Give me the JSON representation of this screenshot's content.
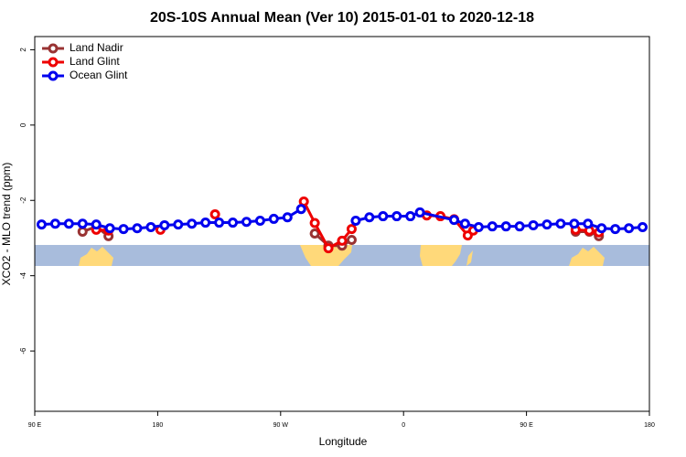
{
  "chart_data": {
    "type": "line",
    "title": "20S-10S Annual Mean (Ver 10)   2015-01-01 to 2020-12-18",
    "xlabel": "Longitude",
    "ylabel": "XCO2 - MLO trend (ppm)",
    "xlim": [
      90,
      540
    ],
    "ylim": [
      -7.6,
      2.35
    ],
    "xticks": [
      {
        "value": 90,
        "label": "90 E"
      },
      180,
      {
        "value": 270,
        "label": "90 W"
      },
      {
        "value": 360,
        "label": "0"
      },
      {
        "value": 450,
        "label": "90 E"
      },
      {
        "value": 540,
        "label": "180"
      }
    ],
    "yticks": [
      2,
      0,
      -2,
      -4,
      -6
    ],
    "legend": "top-left",
    "series": [
      {
        "name": "Land Nadir",
        "color": "#993333",
        "x": [
          125,
          135,
          144,
          null,
          295,
          305,
          315,
          322,
          null,
          486,
          496,
          503
        ],
        "values": [
          -2.83,
          -2.7,
          -2.95,
          null,
          -2.88,
          -3.2,
          -3.2,
          -3.05,
          null,
          -2.83,
          -2.83,
          -2.95
        ]
      },
      {
        "name": "Land Glint",
        "color": "#ee0000",
        "x": [
          135,
          144,
          null,
          182,
          null,
          222,
          null,
          287,
          295,
          305,
          315,
          322,
          null,
          377,
          387,
          397,
          407,
          411,
          null,
          486,
          496,
          503
        ],
        "values": [
          -2.78,
          -2.8,
          null,
          -2.78,
          null,
          -2.37,
          null,
          -2.03,
          -2.6,
          -3.27,
          -3.07,
          -2.76,
          null,
          -2.4,
          -2.42,
          -2.5,
          -2.93,
          -2.8,
          null,
          -2.78,
          -2.8,
          -2.85
        ]
      },
      {
        "name": "Ocean Glint",
        "color": "#0000ee",
        "x": [
          95,
          105,
          115,
          125,
          135,
          145,
          155,
          165,
          175,
          185,
          195,
          205,
          215,
          225,
          235,
          245,
          255,
          265,
          275,
          285,
          null,
          325,
          335,
          345,
          355,
          365,
          372,
          397,
          405,
          415,
          425,
          435,
          445,
          455,
          465,
          475,
          485,
          495,
          505,
          515,
          525,
          535
        ],
        "values": [
          -2.64,
          -2.62,
          -2.62,
          -2.62,
          -2.64,
          -2.74,
          -2.76,
          -2.74,
          -2.71,
          -2.66,
          -2.64,
          -2.62,
          -2.59,
          -2.59,
          -2.59,
          -2.57,
          -2.54,
          -2.49,
          -2.45,
          -2.23,
          null,
          -2.54,
          -2.45,
          -2.42,
          -2.42,
          -2.42,
          -2.32,
          -2.52,
          -2.62,
          -2.71,
          -2.69,
          -2.69,
          -2.69,
          -2.66,
          -2.64,
          -2.62,
          -2.62,
          -2.62,
          -2.74,
          -2.76,
          -2.74,
          -2.71
        ]
      }
    ]
  }
}
